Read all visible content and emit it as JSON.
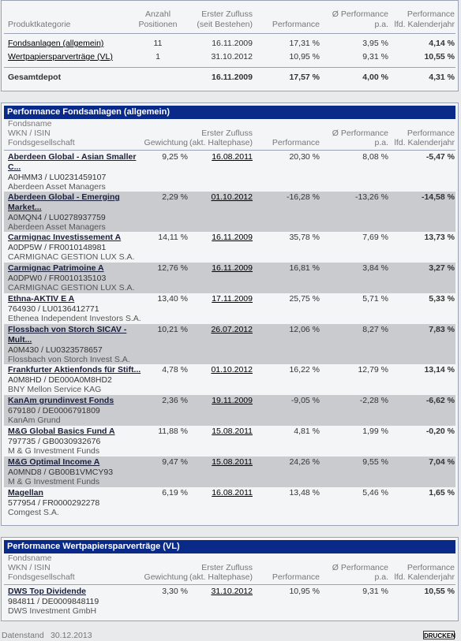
{
  "summary": {
    "headers": {
      "produktkategorie": "Produktkategorie",
      "anzahl": "Anzahl",
      "positionen": "Positionen",
      "erster_zufluss": "Erster Zufluss",
      "seit_bestehen": "(seit Bestehen)",
      "performance": "Performance",
      "avg_perf": "Ø Performance",
      "pa": "p.a.",
      "perf_label": "Performance",
      "lfd_jahr": "lfd. Kalenderjahr"
    },
    "rows": [
      {
        "name": "Fondsanlagen (allgemein)",
        "count": "11",
        "date": "16.11.2009",
        "perf": "17,31 %",
        "avg": "3,95 %",
        "year": "4,14 %"
      },
      {
        "name": "Wertpapiersparverträge (VL)",
        "count": "1",
        "date": "31.10.2012",
        "perf": "10,95 %",
        "avg": "9,31 %",
        "year": "10,55 %"
      }
    ],
    "total": {
      "name": "Gesamtdepot",
      "date": "16.11.2009",
      "perf": "17,57 %",
      "avg": "4,00 %",
      "year": "4,31 %"
    }
  },
  "fonds": {
    "title": "Performance Fondsanlagen (allgemein)",
    "headers": {
      "fondsname": "Fondsname",
      "wkn_isin": "WKN / ISIN",
      "gesellschaft": "Fondsgesellschaft",
      "gewichtung": "Gewichtung",
      "erster_zufluss": "Erster Zufluss",
      "halte": "(akt. Haltephase)",
      "performance": "Performance",
      "avg_perf": "Ø Performance",
      "pa": "p.a.",
      "perf_label": "Performance",
      "lfd_jahr": "lfd. Kalenderjahr"
    },
    "rows": [
      {
        "name1": "Aberdeen Global - Asian Smaller",
        "name2": "C...",
        "wkn": "A0HMM3 /  LU0231459107",
        "company": "Aberdeen Asset Managers",
        "weight": "9,25 %",
        "date": "16.08.2011",
        "perf": "20,30 %",
        "avg": "8,08 %",
        "year": "-5,47 %"
      },
      {
        "name1": "Aberdeen Global - Emerging",
        "name2": "Market...",
        "wkn": "A0MQN4 /  LU0278937759",
        "company": "Aberdeen Asset Managers",
        "weight": "2,29 %",
        "date": "01.10.2012",
        "perf": "-16,28 %",
        "avg": "-13,26 %",
        "year": "-14,58 %"
      },
      {
        "name1": "Carmignac Investissement A",
        "name2": "",
        "wkn": "A0DP5W /  FR0010148981",
        "company": "CARMIGNAC GESTION LUX S.A.",
        "weight": "14,11 %",
        "date": "16.11.2009",
        "perf": "35,78 %",
        "avg": "7,69 %",
        "year": "13,73 %"
      },
      {
        "name1": "Carmignac Patrimoine A",
        "name2": "",
        "wkn": "A0DPW0 /  FR0010135103",
        "company": "CARMIGNAC GESTION LUX S.A.",
        "weight": "12,76 %",
        "date": "16.11.2009",
        "perf": "16,81 %",
        "avg": "3,84 %",
        "year": "3,27 %"
      },
      {
        "name1": "Ethna-AKTIV E A",
        "name2": "",
        "wkn": "764930 /  LU0136412771",
        "company": "Ethenea Independent Investors S.A.",
        "weight": "13,40 %",
        "date": "17.11.2009",
        "perf": "25,75 %",
        "avg": "5,71 %",
        "year": "5,33 %"
      },
      {
        "name1": "Flossbach von Storch SICAV -",
        "name2": "Mult...",
        "wkn": "A0M430 /  LU0323578657",
        "company": "Flossbach von Storch Invest S.A.",
        "weight": "10,21 %",
        "date": "26.07.2012",
        "perf": "12,06 %",
        "avg": "8,27 %",
        "year": "7,83 %"
      },
      {
        "name1": "Frankfurter Aktienfonds für Stift...",
        "name2": "",
        "wkn": "A0M8HD /  DE000A0M8HD2",
        "company": "BNY Mellon Service KAG",
        "weight": "4,78 %",
        "date": "01.10.2012",
        "perf": "16,22 %",
        "avg": "12,79 %",
        "year": "13,14 %"
      },
      {
        "name1": "KanAm grundinvest Fonds",
        "name2": "",
        "wkn": "679180 /  DE0006791809",
        "company": "KanAm Grund",
        "weight": "2,36 %",
        "date": "19.11.2009",
        "perf": "-9,05 %",
        "avg": "-2,28 %",
        "year": "-6,62 %"
      },
      {
        "name1": "M&G Global Basics Fund A",
        "name2": "",
        "wkn": "797735 /  GB0030932676",
        "company": "M & G Investment Funds",
        "weight": "11,88 %",
        "date": "15.08.2011",
        "perf": "4,81 %",
        "avg": "1,99 %",
        "year": "-0,20 %"
      },
      {
        "name1": "M&G Optimal Income A",
        "name2": "",
        "wkn": "A0MND8 /  GB00B1VMCY93",
        "company": "M & G Investment Funds",
        "weight": "9,47 %",
        "date": "15.08.2011",
        "perf": "24,26 %",
        "avg": "9,55 %",
        "year": "7,04 %"
      },
      {
        "name1": "Magellan",
        "name2": "",
        "wkn": "577954 /  FR0000292278",
        "company": "Comgest S.A.",
        "weight": "6,19 %",
        "date": "16.08.2011",
        "perf": "13,48 %",
        "avg": "5,46 %",
        "year": "1,65 %"
      }
    ]
  },
  "vl": {
    "title": "Performance Wertpapiersparverträge (VL)",
    "rows": [
      {
        "name1": "DWS Top Dividende",
        "name2": "",
        "wkn": "984811 /  DE0009848119",
        "company": "DWS Investment GmbH",
        "weight": "3,30 %",
        "date": "31.10.2012",
        "perf": "10,95 %",
        "avg": "9,31 %",
        "year": "10,55 %"
      }
    ]
  },
  "footer": {
    "datenstand_label": "Datenstand",
    "datenstand_value": "30.12.2013",
    "print_label": "DRUCKEN"
  }
}
